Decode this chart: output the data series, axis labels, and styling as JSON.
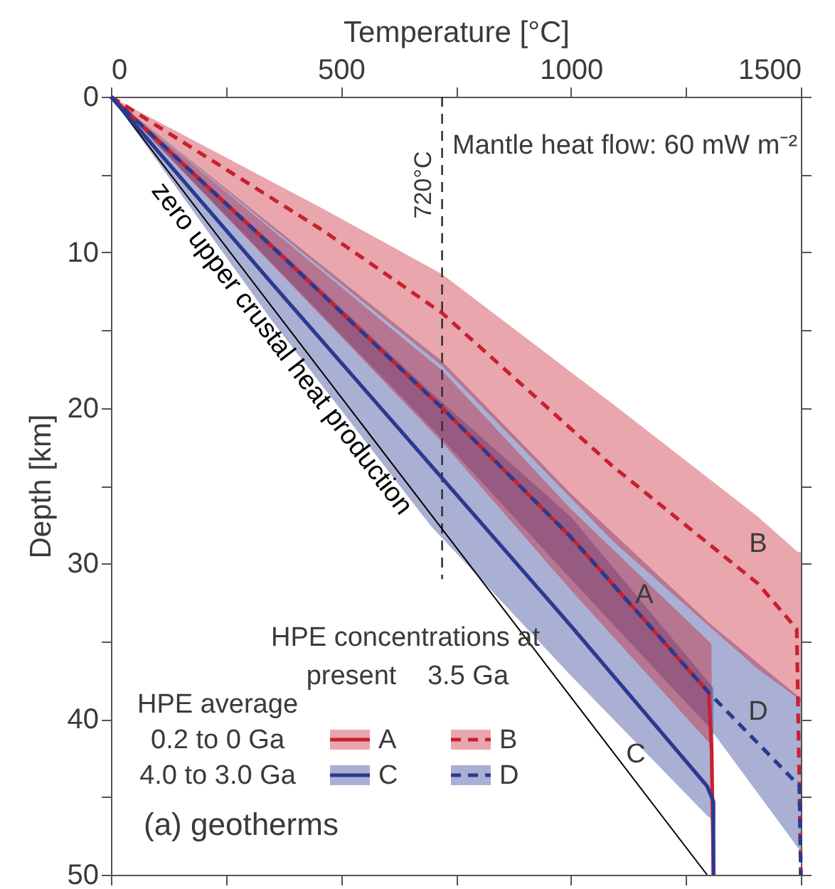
{
  "chart_data": {
    "type": "line",
    "xlabel": "Temperature [°C]",
    "ylabel": "Depth [km]",
    "xlim": [
      0,
      1500
    ],
    "ylim": [
      50,
      0
    ],
    "xticks": [
      0,
      {
        "value": 250,
        "label": null
      },
      500,
      {
        "value": 750,
        "label": null
      },
      1000,
      {
        "value": 1250,
        "label": null
      },
      1500
    ],
    "yticks": [
      0,
      {
        "value": 5,
        "label": null
      },
      10,
      {
        "value": 15,
        "label": null
      },
      20,
      {
        "value": 25,
        "label": null
      },
      30,
      {
        "value": 35,
        "label": null
      },
      40,
      {
        "value": 45,
        "label": null
      },
      50
    ],
    "grid": false,
    "legend": "bottom left",
    "marker": "none",
    "series": [
      {
        "name": "A",
        "color": "#c8202f",
        "line_style": "solid",
        "x": [
          0,
          360,
          720,
          1000,
          1300,
          1306,
          1310
        ],
        "values": [
          0,
          9.9,
          20,
          28.3,
          38.3,
          42,
          50
        ],
        "lower": [
          0,
          8.8,
          17.6,
          26.5,
          35,
          35.2,
          null
        ],
        "upper": [
          0,
          11.1,
          22.2,
          31.7,
          41.5,
          41.6,
          null
        ]
      },
      {
        "name": "B",
        "color": "#c8202f",
        "line_style": "dashed",
        "x": [
          0,
          461,
          720,
          1089,
          1407,
          1491,
          1500
        ],
        "values": [
          0,
          8.6,
          13.9,
          23.7,
          31.3,
          34.2,
          50
        ],
        "lower": [
          0,
          7.2,
          11.4,
          19.7,
          27,
          29.2,
          29.3
        ],
        "upper": [
          0,
          11.1,
          17.3,
          28.5,
          36.8,
          38.6,
          38.9
        ]
      },
      {
        "name": "C",
        "color": "#2b3990",
        "line_style": "solid",
        "x": [
          0,
          350,
          696,
          1000,
          1296,
          1310,
          1310
        ],
        "values": [
          0,
          12,
          23.7,
          34,
          44.3,
          45.3,
          50
        ],
        "lower": [
          0,
          9.4,
          19,
          27,
          37.5,
          38,
          null
        ],
        "upper": [
          0,
          14.4,
          27.6,
          37.2,
          46.2,
          46.5,
          null
        ]
      },
      {
        "name": "D",
        "color": "#2b3990",
        "line_style": "dashed",
        "x": [
          0,
          360,
          720,
          1000,
          1300,
          1497,
          1500
        ],
        "values": [
          0,
          9.9,
          20,
          28.3,
          38.3,
          44.3,
          50
        ],
        "lower": [
          0,
          8.5,
          17,
          25.5,
          33.8,
          38.6,
          38.6
        ],
        "upper": [
          0,
          11,
          22,
          31,
          40.5,
          48.4,
          48.4
        ]
      },
      {
        "name": "zero upper crustal heat production",
        "color": "#000000",
        "line_style": "solid",
        "x": [
          0,
          1296
        ],
        "values": [
          0,
          50
        ]
      }
    ],
    "ref_lines": [
      {
        "axis": "x",
        "value": 720,
        "label": "720°C",
        "color": "#333333",
        "line_style": "dashed"
      }
    ],
    "annotations": [
      "Mantle heat flow: 60 mW m⁻²",
      "HPE concentrations at",
      "present",
      "3.5 Ga",
      "HPE average",
      "0.2 to 0 Ga",
      "4.0 to 3.0 Ga",
      "(a) geotherms",
      "A",
      "B",
      "C",
      "D"
    ]
  }
}
